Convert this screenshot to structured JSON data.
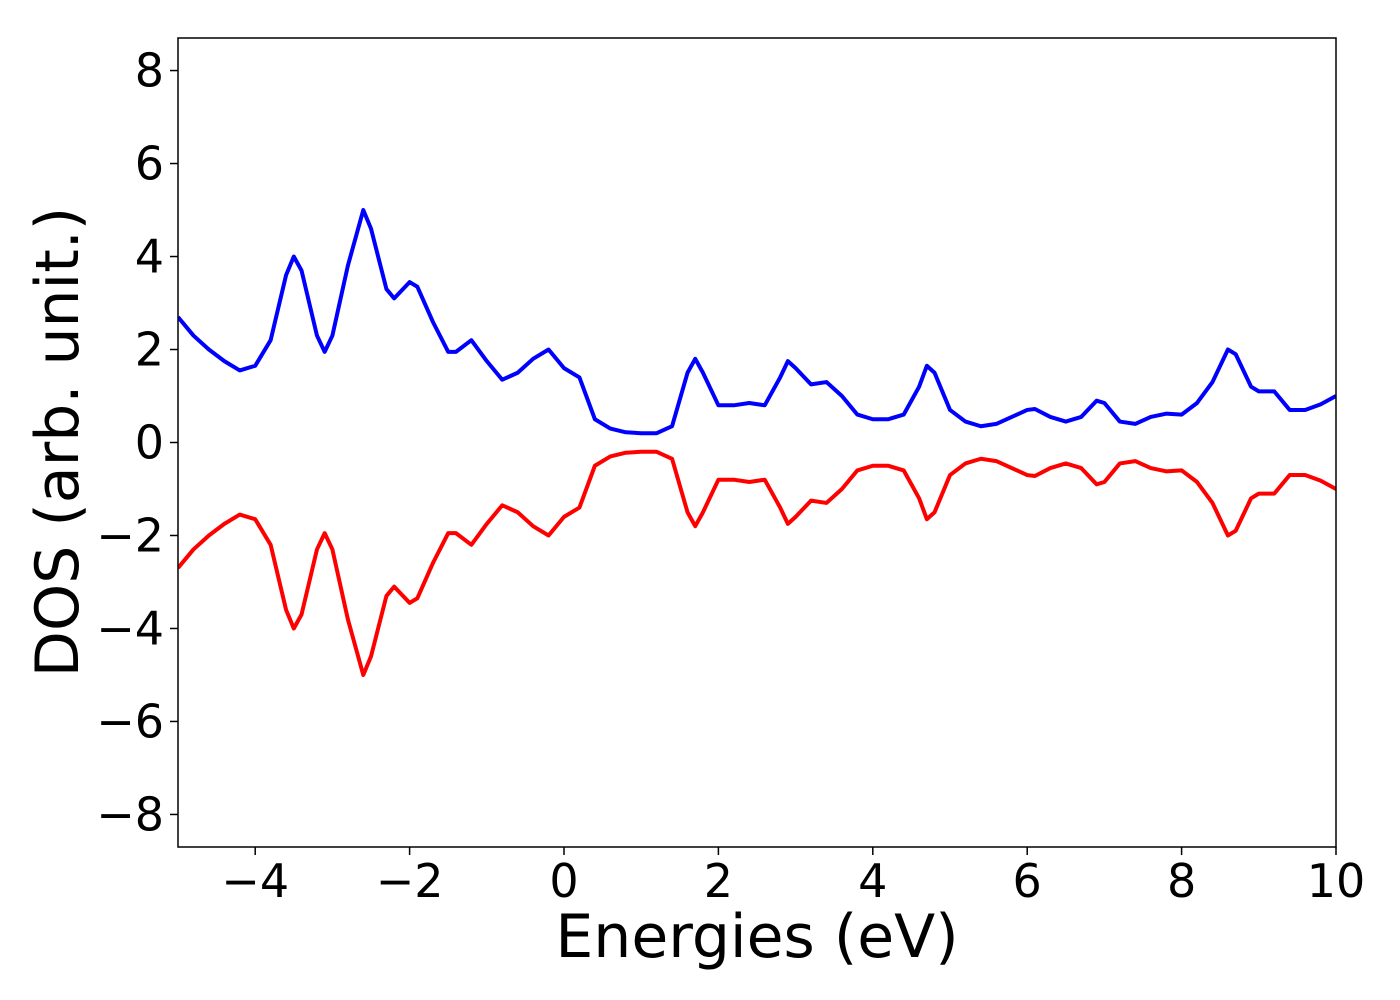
{
  "chart_data": {
    "type": "line",
    "xlabel": "Energies (eV)",
    "ylabel": "DOS (arb. unit.)",
    "x": [
      -5,
      -4.8,
      -4.6,
      -4.4,
      -4.2,
      -4.0,
      -3.8,
      -3.6,
      -3.5,
      -3.4,
      -3.2,
      -3.1,
      -3.0,
      -2.8,
      -2.6,
      -2.5,
      -2.3,
      -2.2,
      -2.0,
      -1.9,
      -1.7,
      -1.5,
      -1.4,
      -1.2,
      -1.0,
      -0.8,
      -0.6,
      -0.4,
      -0.2,
      0.0,
      0.2,
      0.4,
      0.6,
      0.8,
      1.0,
      1.2,
      1.4,
      1.6,
      1.7,
      1.8,
      2.0,
      2.2,
      2.4,
      2.6,
      2.8,
      2.9,
      3.0,
      3.2,
      3.4,
      3.6,
      3.8,
      4.0,
      4.2,
      4.4,
      4.6,
      4.7,
      4.8,
      5.0,
      5.2,
      5.4,
      5.6,
      5.8,
      6.0,
      6.1,
      6.3,
      6.5,
      6.7,
      6.9,
      7.0,
      7.2,
      7.4,
      7.6,
      7.8,
      8.0,
      8.2,
      8.4,
      8.6,
      8.7,
      8.9,
      9.0,
      9.2,
      9.4,
      9.6,
      9.8,
      10.0
    ],
    "series": [
      {
        "color": "#0000ff",
        "values": [
          2.7,
          2.3,
          2.0,
          1.75,
          1.55,
          1.65,
          2.2,
          3.6,
          4.0,
          3.7,
          2.3,
          1.95,
          2.3,
          3.8,
          5.0,
          4.6,
          3.3,
          3.1,
          3.45,
          3.35,
          2.6,
          1.95,
          1.95,
          2.2,
          1.75,
          1.35,
          1.5,
          1.8,
          2.0,
          1.6,
          1.4,
          0.5,
          0.3,
          0.22,
          0.2,
          0.2,
          0.35,
          1.5,
          1.8,
          1.5,
          0.8,
          0.8,
          0.85,
          0.8,
          1.4,
          1.75,
          1.6,
          1.25,
          1.3,
          1.0,
          0.6,
          0.5,
          0.5,
          0.6,
          1.2,
          1.65,
          1.5,
          0.7,
          0.45,
          0.35,
          0.4,
          0.55,
          0.7,
          0.72,
          0.55,
          0.45,
          0.55,
          0.9,
          0.85,
          0.45,
          0.4,
          0.55,
          0.62,
          0.6,
          0.85,
          1.3,
          2.0,
          1.9,
          1.2,
          1.1,
          1.1,
          0.7,
          0.7,
          0.82,
          1.0
        ]
      },
      {
        "color": "#ff0000",
        "values": [
          -2.7,
          -2.3,
          -2.0,
          -1.75,
          -1.55,
          -1.65,
          -2.2,
          -3.6,
          -4.0,
          -3.7,
          -2.3,
          -1.95,
          -2.3,
          -3.8,
          -5.0,
          -4.6,
          -3.3,
          -3.1,
          -3.45,
          -3.35,
          -2.6,
          -1.95,
          -1.95,
          -2.2,
          -1.75,
          -1.35,
          -1.5,
          -1.8,
          -2.0,
          -1.6,
          -1.4,
          -0.5,
          -0.3,
          -0.22,
          -0.2,
          -0.2,
          -0.35,
          -1.5,
          -1.8,
          -1.5,
          -0.8,
          -0.8,
          -0.85,
          -0.8,
          -1.4,
          -1.75,
          -1.6,
          -1.25,
          -1.3,
          -1.0,
          -0.6,
          -0.5,
          -0.5,
          -0.6,
          -1.2,
          -1.65,
          -1.5,
          -0.7,
          -0.45,
          -0.35,
          -0.4,
          -0.55,
          -0.7,
          -0.72,
          -0.55,
          -0.45,
          -0.55,
          -0.9,
          -0.85,
          -0.45,
          -0.4,
          -0.55,
          -0.62,
          -0.6,
          -0.85,
          -1.3,
          -2.0,
          -1.9,
          -1.2,
          -1.1,
          -1.1,
          -0.7,
          -0.7,
          -0.82,
          -1.0
        ]
      }
    ],
    "xlim": [
      -5,
      10
    ],
    "xticks": [
      {
        "value": -4,
        "label": "−4"
      },
      {
        "value": -2,
        "label": "−2"
      },
      0,
      2,
      4,
      6,
      8,
      10
    ],
    "ylim": [
      -8.7,
      8.7
    ],
    "yticks": [
      {
        "value": -8,
        "label": "−8"
      },
      {
        "value": -6,
        "label": "−6"
      },
      {
        "value": -4,
        "label": "−4"
      },
      {
        "value": -2,
        "label": "−2"
      },
      0,
      2,
      4,
      6,
      8
    ],
    "grid": false
  }
}
